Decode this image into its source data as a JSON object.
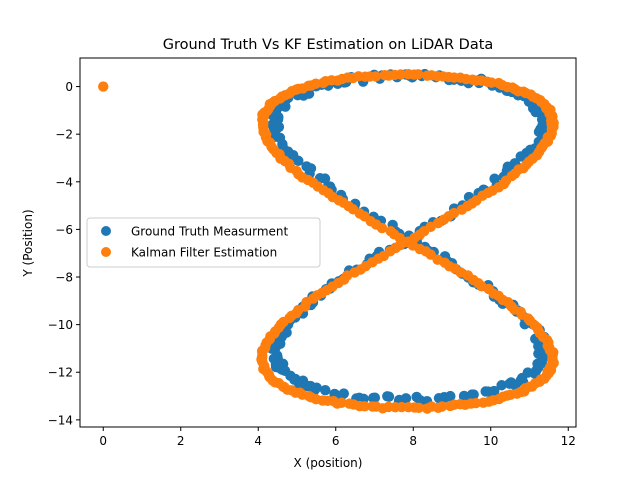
{
  "chart_data": {
    "type": "scatter",
    "title": "Ground Truth Vs KF Estimation on LiDAR Data",
    "xlabel": "X (position)",
    "ylabel": "Y (Position)",
    "xlim": [
      -0.6,
      12.2
    ],
    "ylim": [
      -14.3,
      1.2
    ],
    "xticks": [
      0,
      2,
      4,
      6,
      8,
      10,
      12
    ],
    "yticks": [
      0,
      -2,
      -4,
      -6,
      -8,
      -10,
      -12,
      -14
    ],
    "grid": false,
    "legend_position": "center-left",
    "colors": {
      "ground_truth": "#1f77b4",
      "kalman": "#ff7f0e"
    },
    "curve_description": "figure-eight trajectory sampled at many points",
    "figure8_params": {
      "ground_truth": {
        "cx": 7.9,
        "cy": -6.35,
        "ax": 3.45,
        "ay": 6.8,
        "n": 260,
        "noise": 0.12
      },
      "kalman": {
        "cx": 7.85,
        "cy": -6.5,
        "ax": 3.75,
        "ay": 7.0,
        "n": 300,
        "noise": 0.04
      }
    },
    "series": [
      {
        "name": "Ground Truth Measurment",
        "values": []
      },
      {
        "name": "Kalman Filter Estimation",
        "values": [
          [
            0,
            0
          ]
        ]
      }
    ]
  }
}
